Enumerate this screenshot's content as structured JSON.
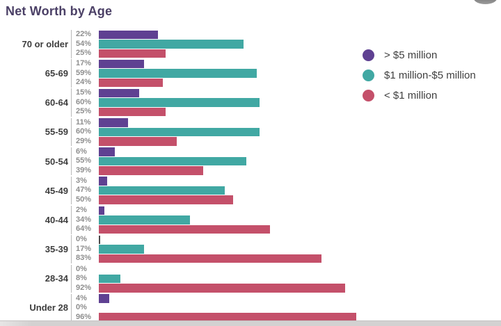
{
  "title": "Net Worth by Age",
  "chart_data": {
    "type": "bar",
    "orientation": "horizontal",
    "title": "Net Worth by Age",
    "unit": "%",
    "value_labels": true,
    "xlim": [
      0,
      100
    ],
    "grid": false,
    "legend_position": "right",
    "categories": [
      "70 or older",
      "65-69",
      "60-64",
      "55-59",
      "50-54",
      "45-49",
      "40-44",
      "35-39",
      "28-34",
      "Under 28"
    ],
    "series": [
      {
        "name": "> $5 million",
        "color": "#5f4192",
        "values": [
          22,
          17,
          15,
          11,
          6,
          3,
          2,
          0,
          0,
          4
        ]
      },
      {
        "name": "$1 million-$5 million",
        "color": "#41a8a3",
        "values": [
          54,
          59,
          60,
          60,
          55,
          47,
          34,
          17,
          8,
          0
        ]
      },
      {
        "name": "< $1 million",
        "color": "#c4506a",
        "values": [
          25,
          24,
          25,
          29,
          39,
          50,
          64,
          83,
          92,
          96
        ]
      }
    ],
    "zero_sliver": {
      "category": "35-39",
      "series": 0,
      "color": "#4a4a4a"
    }
  },
  "colors": {
    "title_text": "#4b4066",
    "axis_line": "#b9b9b9",
    "value_label_text": "#8e8e8e",
    "age_label_text": "#3d3d3d",
    "legend_text": "#3f3f3f"
  }
}
